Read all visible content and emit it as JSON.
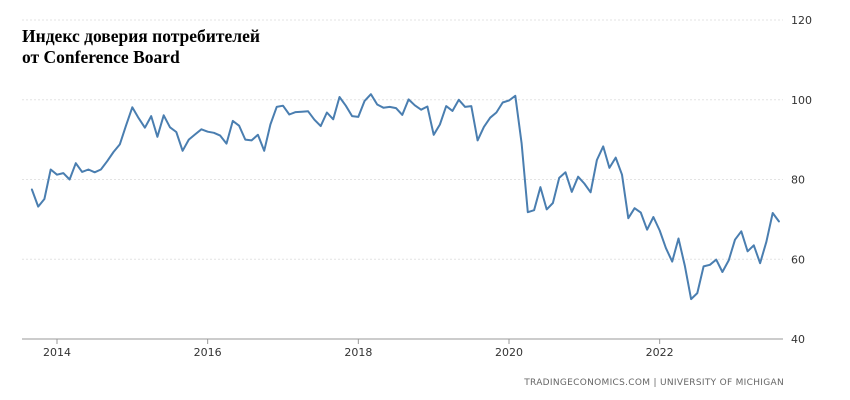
{
  "chart_data": {
    "type": "line",
    "title_line1": "Индекс доверия потребителей",
    "title_line2": "от Conference Board",
    "source": "TRADINGECONOMICS.COM  |  UNIVERSITY OF MICHIGAN",
    "xlabel": "",
    "ylabel": "",
    "x_ticks": [
      "2014",
      "2016",
      "2018",
      "2020",
      "2022"
    ],
    "y_ticks": [
      "120",
      "100",
      "80",
      "60",
      "40"
    ],
    "ylim": [
      40,
      120
    ],
    "x_range": [
      "2013-09",
      "2023-08"
    ],
    "grid": "horizontal",
    "y_axis_position": "right",
    "line_color": "#4a7eb0",
    "series": [
      {
        "x": [
          "2013-09",
          "2013-10",
          "2013-11",
          "2013-12",
          "2014-01",
          "2014-02",
          "2014-03",
          "2014-04",
          "2014-05",
          "2014-06",
          "2014-07",
          "2014-08",
          "2014-09",
          "2014-10",
          "2014-11",
          "2014-12",
          "2015-01",
          "2015-02",
          "2015-03",
          "2015-04",
          "2015-05",
          "2015-06",
          "2015-07",
          "2015-08",
          "2015-09",
          "2015-10",
          "2015-11",
          "2015-12",
          "2016-01",
          "2016-02",
          "2016-03",
          "2016-04",
          "2016-05",
          "2016-06",
          "2016-07",
          "2016-08",
          "2016-09",
          "2016-10",
          "2016-11",
          "2016-12",
          "2017-01",
          "2017-02",
          "2017-03",
          "2017-04",
          "2017-05",
          "2017-06",
          "2017-07",
          "2017-08",
          "2017-09",
          "2017-10",
          "2017-11",
          "2017-12",
          "2018-01",
          "2018-02",
          "2018-03",
          "2018-04",
          "2018-05",
          "2018-06",
          "2018-07",
          "2018-08",
          "2018-09",
          "2018-10",
          "2018-11",
          "2018-12",
          "2019-01",
          "2019-02",
          "2019-03",
          "2019-04",
          "2019-05",
          "2019-06",
          "2019-07",
          "2019-08",
          "2019-09",
          "2019-10",
          "2019-11",
          "2019-12",
          "2020-01",
          "2020-02",
          "2020-03",
          "2020-04",
          "2020-05",
          "2020-06",
          "2020-07",
          "2020-08",
          "2020-09",
          "2020-10",
          "2020-11",
          "2020-12",
          "2021-01",
          "2021-02",
          "2021-03",
          "2021-04",
          "2021-05",
          "2021-06",
          "2021-07",
          "2021-08",
          "2021-09",
          "2021-10",
          "2021-11",
          "2021-12",
          "2022-01",
          "2022-02",
          "2022-03",
          "2022-04",
          "2022-05",
          "2022-06",
          "2022-07",
          "2022-08",
          "2022-09",
          "2022-10",
          "2022-11",
          "2022-12",
          "2023-01",
          "2023-02",
          "2023-03",
          "2023-04",
          "2023-05",
          "2023-06",
          "2023-07",
          "2023-08"
        ],
        "values": [
          77.5,
          73.2,
          75.1,
          82.5,
          81.2,
          81.6,
          80.0,
          84.1,
          81.9,
          82.5,
          81.8,
          82.5,
          84.6,
          86.9,
          88.8,
          93.6,
          98.1,
          95.4,
          93.0,
          95.9,
          90.7,
          96.1,
          93.1,
          91.9,
          87.2,
          90.0,
          91.3,
          92.6,
          92.0,
          91.7,
          91.0,
          89.0,
          94.7,
          93.5,
          90.0,
          89.8,
          91.2,
          87.2,
          93.8,
          98.2,
          98.5,
          96.3,
          96.9,
          97.0,
          97.1,
          95.0,
          93.4,
          96.8,
          95.1,
          100.7,
          98.5,
          95.9,
          95.7,
          99.7,
          101.4,
          98.8,
          98.0,
          98.2,
          97.9,
          96.2,
          100.1,
          98.6,
          97.5,
          98.3,
          91.2,
          93.8,
          98.4,
          97.2,
          100.0,
          98.2,
          98.4,
          89.8,
          93.2,
          95.5,
          96.8,
          99.3,
          99.8,
          101.0,
          89.1,
          71.8,
          72.3,
          78.1,
          72.5,
          74.1,
          80.4,
          81.8,
          76.9,
          80.7,
          79.0,
          76.8,
          84.9,
          88.3,
          82.9,
          85.5,
          81.2,
          70.3,
          72.8,
          71.7,
          67.4,
          70.6,
          67.2,
          62.8,
          59.4,
          65.2,
          58.4,
          50.0,
          51.5,
          58.2,
          58.6,
          59.9,
          56.8,
          59.7,
          64.9,
          67.0,
          62.0,
          63.5,
          59.0,
          64.4,
          71.6,
          69.5
        ]
      }
    ]
  }
}
